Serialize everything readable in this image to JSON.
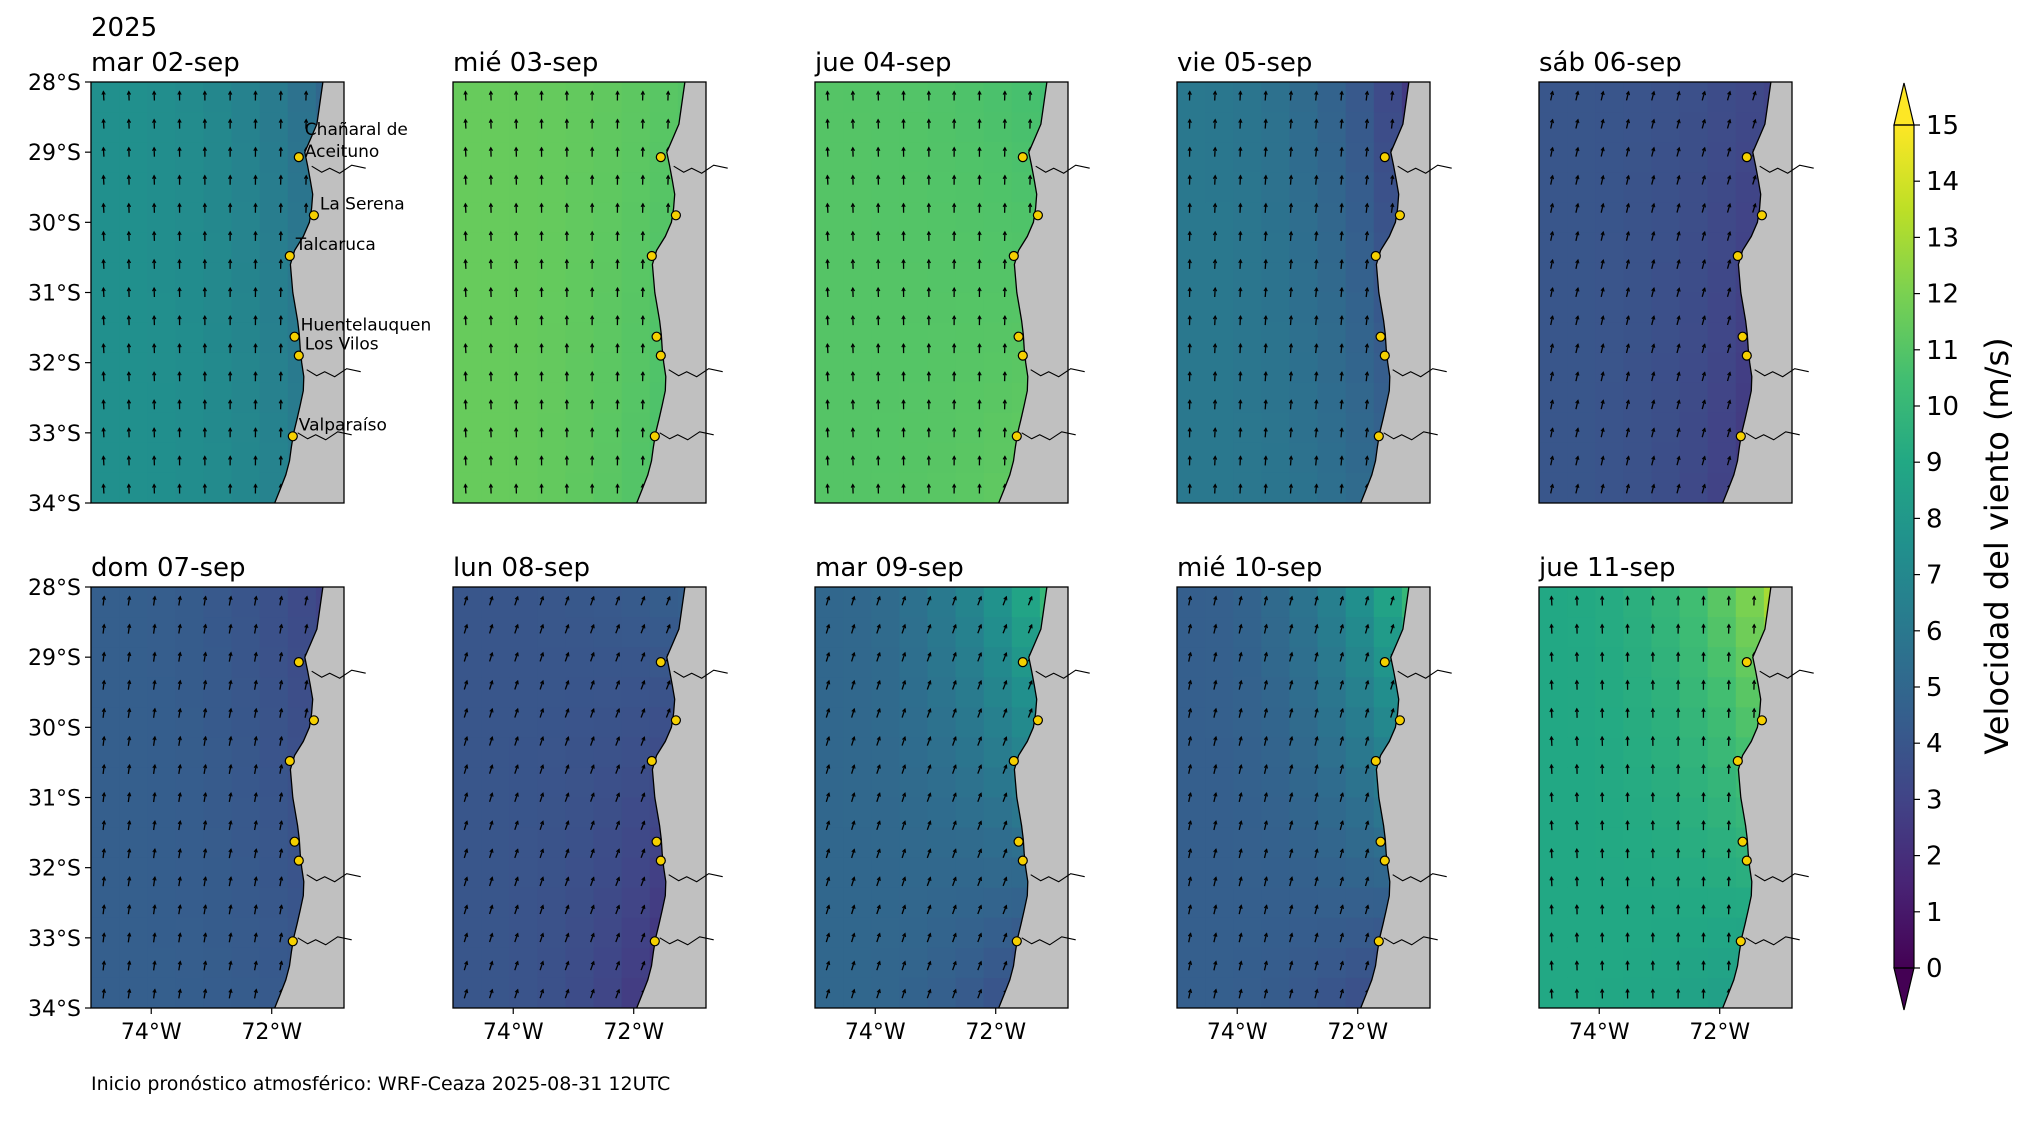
{
  "figure": {
    "year": "2025",
    "footer": "Inicio pronóstico atmosférico: WRF-Ceaza 2025-08-31 12UTC"
  },
  "colors": {
    "land": "#c0c0c0",
    "station_fill": "#f5d000",
    "viridis": [
      "#440154",
      "#482475",
      "#414487",
      "#355f8d",
      "#2a788e",
      "#21908d",
      "#22a884",
      "#42be71",
      "#7ad151",
      "#bddf26",
      "#fde725"
    ]
  },
  "axes": {
    "lat_ticks": [
      "28°S",
      "29°S",
      "30°S",
      "31°S",
      "32°S",
      "33°S",
      "34°S"
    ],
    "lon_ticks": [
      "74°W",
      "72°W"
    ]
  },
  "stations": [
    {
      "name": "Chañaral de Aceituno",
      "lines": [
        "Chañaral de",
        "Aceituno"
      ],
      "lon": -71.55,
      "lat": -29.07
    },
    {
      "name": "La Serena",
      "lines": [
        "La Serena"
      ],
      "lon": -71.3,
      "lat": -29.9
    },
    {
      "name": "Talcaruca",
      "lines": [
        "Talcaruca"
      ],
      "lon": -71.7,
      "lat": -30.48
    },
    {
      "name": "Huentelauquen",
      "lines": [
        "Huentelauquen"
      ],
      "lon": -71.62,
      "lat": -31.63
    },
    {
      "name": "Los Vilos",
      "lines": [
        "Los Vilos"
      ],
      "lon": -71.55,
      "lat": -31.9
    },
    {
      "name": "Valparaíso",
      "lines": [
        "Valparaíso"
      ],
      "lon": -71.65,
      "lat": -33.05
    }
  ],
  "colorbar": {
    "label": "Velocidad del viento (m/s)",
    "ticks": [
      "0",
      "1",
      "2",
      "3",
      "4",
      "5",
      "6",
      "7",
      "8",
      "9",
      "10",
      "11",
      "12",
      "13",
      "14",
      "15"
    ]
  },
  "chart_data": {
    "type": "heatmap",
    "variable": "wind speed",
    "units": "m/s",
    "xlim": [
      -75,
      -70.8
    ],
    "ylim": [
      -34,
      -28
    ],
    "value_range": [
      0,
      15
    ],
    "panels": [
      {
        "title": "mar 02-sep",
        "offshore": 7.5,
        "coast_n": 5,
        "coast_s": 6,
        "dir": 0
      },
      {
        "title": "mié 03-sep",
        "offshore": 11.5,
        "coast_n": 11,
        "coast_s": 10.5,
        "dir": 0
      },
      {
        "title": "jue 04-sep",
        "offshore": 11,
        "coast_n": 10.5,
        "coast_s": 11.5,
        "dir": 0
      },
      {
        "title": "vie 05-sep",
        "offshore": 6,
        "coast_n": 2.5,
        "coast_s": 4.5,
        "dir": 5
      },
      {
        "title": "sáb 06-sep",
        "offshore": 4,
        "coast_n": 3,
        "coast_s": 2,
        "dir": 15
      },
      {
        "title": "dom 07-sep",
        "offshore": 4.5,
        "coast_n": 3,
        "coast_s": 4,
        "dir": 10
      },
      {
        "title": "lun 08-sep",
        "offshore": 4,
        "coast_n": 4.5,
        "coast_s": 1.5,
        "dir": 20
      },
      {
        "title": "mar 09-sep",
        "offshore": 5,
        "coast_n": 10,
        "coast_s": 3,
        "dir": 20
      },
      {
        "title": "mié 10-sep",
        "offshore": 4.5,
        "coast_n": 10,
        "coast_s": 3,
        "dir": 15
      },
      {
        "title": "jue 11-sep",
        "offshore": 9,
        "coast_n": 13,
        "coast_s": 8,
        "dir": 0
      }
    ]
  }
}
